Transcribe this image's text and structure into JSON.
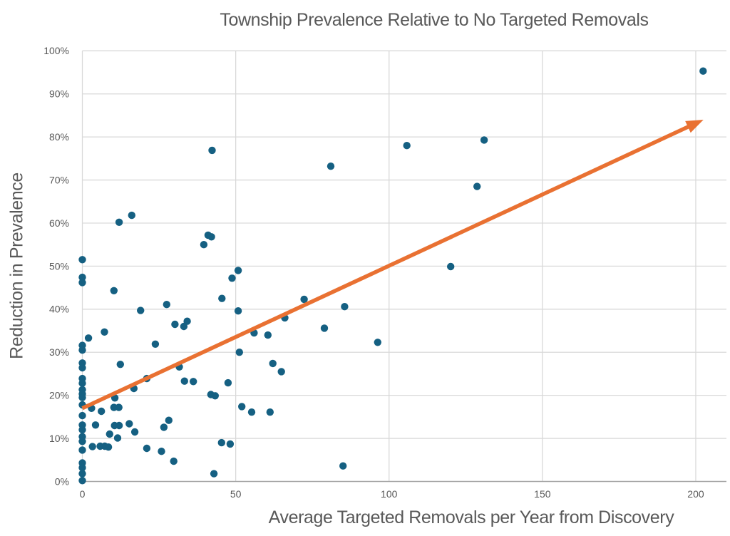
{
  "page": {
    "background": "#FFFFFF"
  },
  "chart_data": {
    "type": "scatter",
    "title": "Township Prevalence Relative to No Targeted Removals",
    "xlabel": "Average Targeted Removals per Year from Discovery",
    "ylabel": "Reduction in Prevalence",
    "xlim": [
      0,
      210
    ],
    "ylim": [
      0,
      100
    ],
    "grid": true,
    "legend": "none",
    "x_ticks": [
      {
        "v": 0,
        "label": "0"
      },
      {
        "v": 50,
        "label": "50"
      },
      {
        "v": 100,
        "label": "100"
      },
      {
        "v": 150,
        "label": "150"
      },
      {
        "v": 200,
        "label": "200"
      }
    ],
    "y_ticks": [
      {
        "v": 0,
        "label": "0%"
      },
      {
        "v": 10,
        "label": "10%"
      },
      {
        "v": 20,
        "label": "20%"
      },
      {
        "v": 30,
        "label": "30%"
      },
      {
        "v": 40,
        "label": "40%"
      },
      {
        "v": 50,
        "label": "50%"
      },
      {
        "v": 60,
        "label": "60%"
      },
      {
        "v": 70,
        "label": "70%"
      },
      {
        "v": 80,
        "label": "80%"
      },
      {
        "v": 90,
        "label": "90%"
      },
      {
        "v": 100,
        "label": "100%"
      }
    ],
    "colors": {
      "points": "#156082",
      "trend": "#E97132",
      "text": "#595959",
      "gridline": "#D9D9D9",
      "axis_line": "#A6A6A6"
    },
    "trend_arrow": {
      "x1": 0,
      "y1": 17,
      "x2": 202.5,
      "y2": 84
    },
    "points": [
      [
        0,
        51.5
      ],
      [
        0,
        47.4
      ],
      [
        0,
        46.2
      ],
      [
        0,
        31.6
      ],
      [
        0,
        30.5
      ],
      [
        0,
        27.5
      ],
      [
        0,
        26.4
      ],
      [
        0,
        23.9
      ],
      [
        0,
        22.8
      ],
      [
        0,
        21.3
      ],
      [
        0,
        20.3
      ],
      [
        0,
        19.5
      ],
      [
        0,
        17.8
      ],
      [
        0,
        15.3
      ],
      [
        0,
        13.1
      ],
      [
        0,
        12.0
      ],
      [
        0,
        10.4
      ],
      [
        0,
        9.3
      ],
      [
        0,
        7.3
      ],
      [
        0,
        4.3
      ],
      [
        0,
        3.2
      ],
      [
        0,
        1.8
      ],
      [
        0,
        0.2
      ],
      [
        2,
        33.3
      ],
      [
        3,
        17.0
      ],
      [
        3.3,
        8.1
      ],
      [
        4.3,
        13.1
      ],
      [
        5.8,
        8.2
      ],
      [
        6.2,
        16.3
      ],
      [
        7.2,
        34.7
      ],
      [
        7.3,
        8.2
      ],
      [
        8.5,
        8.0
      ],
      [
        8.9,
        11.0
      ],
      [
        10.3,
        44.3
      ],
      [
        10.3,
        17.2
      ],
      [
        10.5,
        13.0
      ],
      [
        10.6,
        19.4
      ],
      [
        11.5,
        10.1
      ],
      [
        11.9,
        17.2
      ],
      [
        12.0,
        60.2
      ],
      [
        12.0,
        13.0
      ],
      [
        12.4,
        27.2
      ],
      [
        15.3,
        13.4
      ],
      [
        16.1,
        61.8
      ],
      [
        16.8,
        21.6
      ],
      [
        17.1,
        11.5
      ],
      [
        19.0,
        39.7
      ],
      [
        21.0,
        23.9
      ],
      [
        21.0,
        7.7
      ],
      [
        23.8,
        31.9
      ],
      [
        25.8,
        7.0
      ],
      [
        26.6,
        12.6
      ],
      [
        27.5,
        41.1
      ],
      [
        28.2,
        14.2
      ],
      [
        29.8,
        4.7
      ],
      [
        30.2,
        36.5
      ],
      [
        31.6,
        26.6
      ],
      [
        33.1,
        36.0
      ],
      [
        33.3,
        23.3
      ],
      [
        34.2,
        37.2
      ],
      [
        36.2,
        23.2
      ],
      [
        39.6,
        55.0
      ],
      [
        41.0,
        57.2
      ],
      [
        42.1,
        56.8
      ],
      [
        42.3,
        76.9
      ],
      [
        41.9,
        20.2
      ],
      [
        43.3,
        19.9
      ],
      [
        42.9,
        1.8
      ],
      [
        45.5,
        42.5
      ],
      [
        45.4,
        9.0
      ],
      [
        47.5,
        22.9
      ],
      [
        48.2,
        8.7
      ],
      [
        48.8,
        47.2
      ],
      [
        50.8,
        49.0
      ],
      [
        50.8,
        39.6
      ],
      [
        51.2,
        30.0
      ],
      [
        52.0,
        17.4
      ],
      [
        55.2,
        16.1
      ],
      [
        56.0,
        34.5
      ],
      [
        60.5,
        34.0
      ],
      [
        61.2,
        16.1
      ],
      [
        62.1,
        27.4
      ],
      [
        64.9,
        25.5
      ],
      [
        66.0,
        38.0
      ],
      [
        72.3,
        42.3
      ],
      [
        78.9,
        35.6
      ],
      [
        81.0,
        73.2
      ],
      [
        85.5,
        40.6
      ],
      [
        85.0,
        3.6
      ],
      [
        96.3,
        32.3
      ],
      [
        105.8,
        78.0
      ],
      [
        120.1,
        49.9
      ],
      [
        128.7,
        68.5
      ],
      [
        131.0,
        79.3
      ],
      [
        202.4,
        95.3
      ]
    ]
  }
}
